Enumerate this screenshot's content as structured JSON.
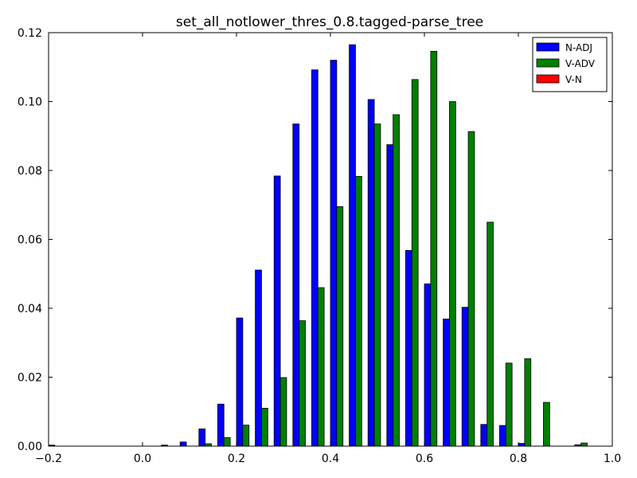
{
  "chart_data": {
    "type": "bar",
    "title": "set_all_notlower_thres_0.8.tagged-parse_tree",
    "xlabel": "",
    "ylabel": "",
    "xlim": [
      -0.2,
      1.0
    ],
    "ylim": [
      0.0,
      0.12
    ],
    "x_ticks": [
      "−0.2",
      "0.0",
      "0.2",
      "0.4",
      "0.6",
      "0.8",
      "1.0"
    ],
    "x_tick_values": [
      -0.2,
      0.0,
      0.2,
      0.4,
      0.6,
      0.8,
      1.0
    ],
    "y_ticks": [
      "0.00",
      "0.02",
      "0.04",
      "0.06",
      "0.08",
      "0.10",
      "0.12"
    ],
    "y_tick_values": [
      0.0,
      0.02,
      0.04,
      0.06,
      0.08,
      0.1,
      0.12
    ],
    "grid": false,
    "legend_position": "top-right",
    "bin_starts": [
      -0.2,
      -0.16,
      -0.12,
      -0.08,
      -0.04,
      0.0,
      0.04,
      0.08,
      0.12,
      0.16,
      0.2,
      0.24,
      0.28,
      0.32,
      0.36,
      0.4,
      0.44,
      0.48,
      0.52,
      0.56,
      0.6,
      0.64,
      0.68,
      0.72,
      0.76,
      0.8,
      0.84,
      0.88,
      0.92,
      0.96
    ],
    "series": [
      {
        "name": "N-ADJ",
        "color": "#0000ff",
        "values": [
          0.0003,
          0.0,
          0.0,
          0.0,
          0.0,
          0.0,
          0.0003,
          0.0012,
          0.005,
          0.0122,
          0.0372,
          0.0511,
          0.0784,
          0.0935,
          0.1092,
          0.112,
          0.1165,
          0.1006,
          0.0875,
          0.0568,
          0.0471,
          0.0369,
          0.0403,
          0.0063,
          0.006,
          0.0008,
          0.0,
          0.0,
          0.0004,
          0.0
        ]
      },
      {
        "name": "V-ADV",
        "color": "#008000",
        "values": [
          0.0,
          0.0,
          0.0,
          0.0,
          0.0,
          0.0,
          0.0,
          0.0,
          0.0007,
          0.0025,
          0.0061,
          0.011,
          0.0199,
          0.0364,
          0.046,
          0.0695,
          0.0783,
          0.0935,
          0.0962,
          0.1064,
          0.1146,
          0.1,
          0.0913,
          0.065,
          0.0241,
          0.0254,
          0.0127,
          0.0,
          0.0009,
          0.0
        ]
      },
      {
        "name": "V-N",
        "color": "#ff0000",
        "values": [
          0.0,
          0.0,
          0.0,
          0.0,
          0.0,
          0.0,
          0.0,
          0.0,
          0.0,
          0.0,
          0.0,
          0.0,
          0.0,
          0.0,
          0.0,
          0.0,
          0.0,
          0.0,
          0.0,
          0.0,
          0.0,
          0.0,
          0.0,
          0.0,
          0.0,
          0.0,
          0.0,
          0.0,
          0.0,
          0.0
        ]
      }
    ]
  }
}
